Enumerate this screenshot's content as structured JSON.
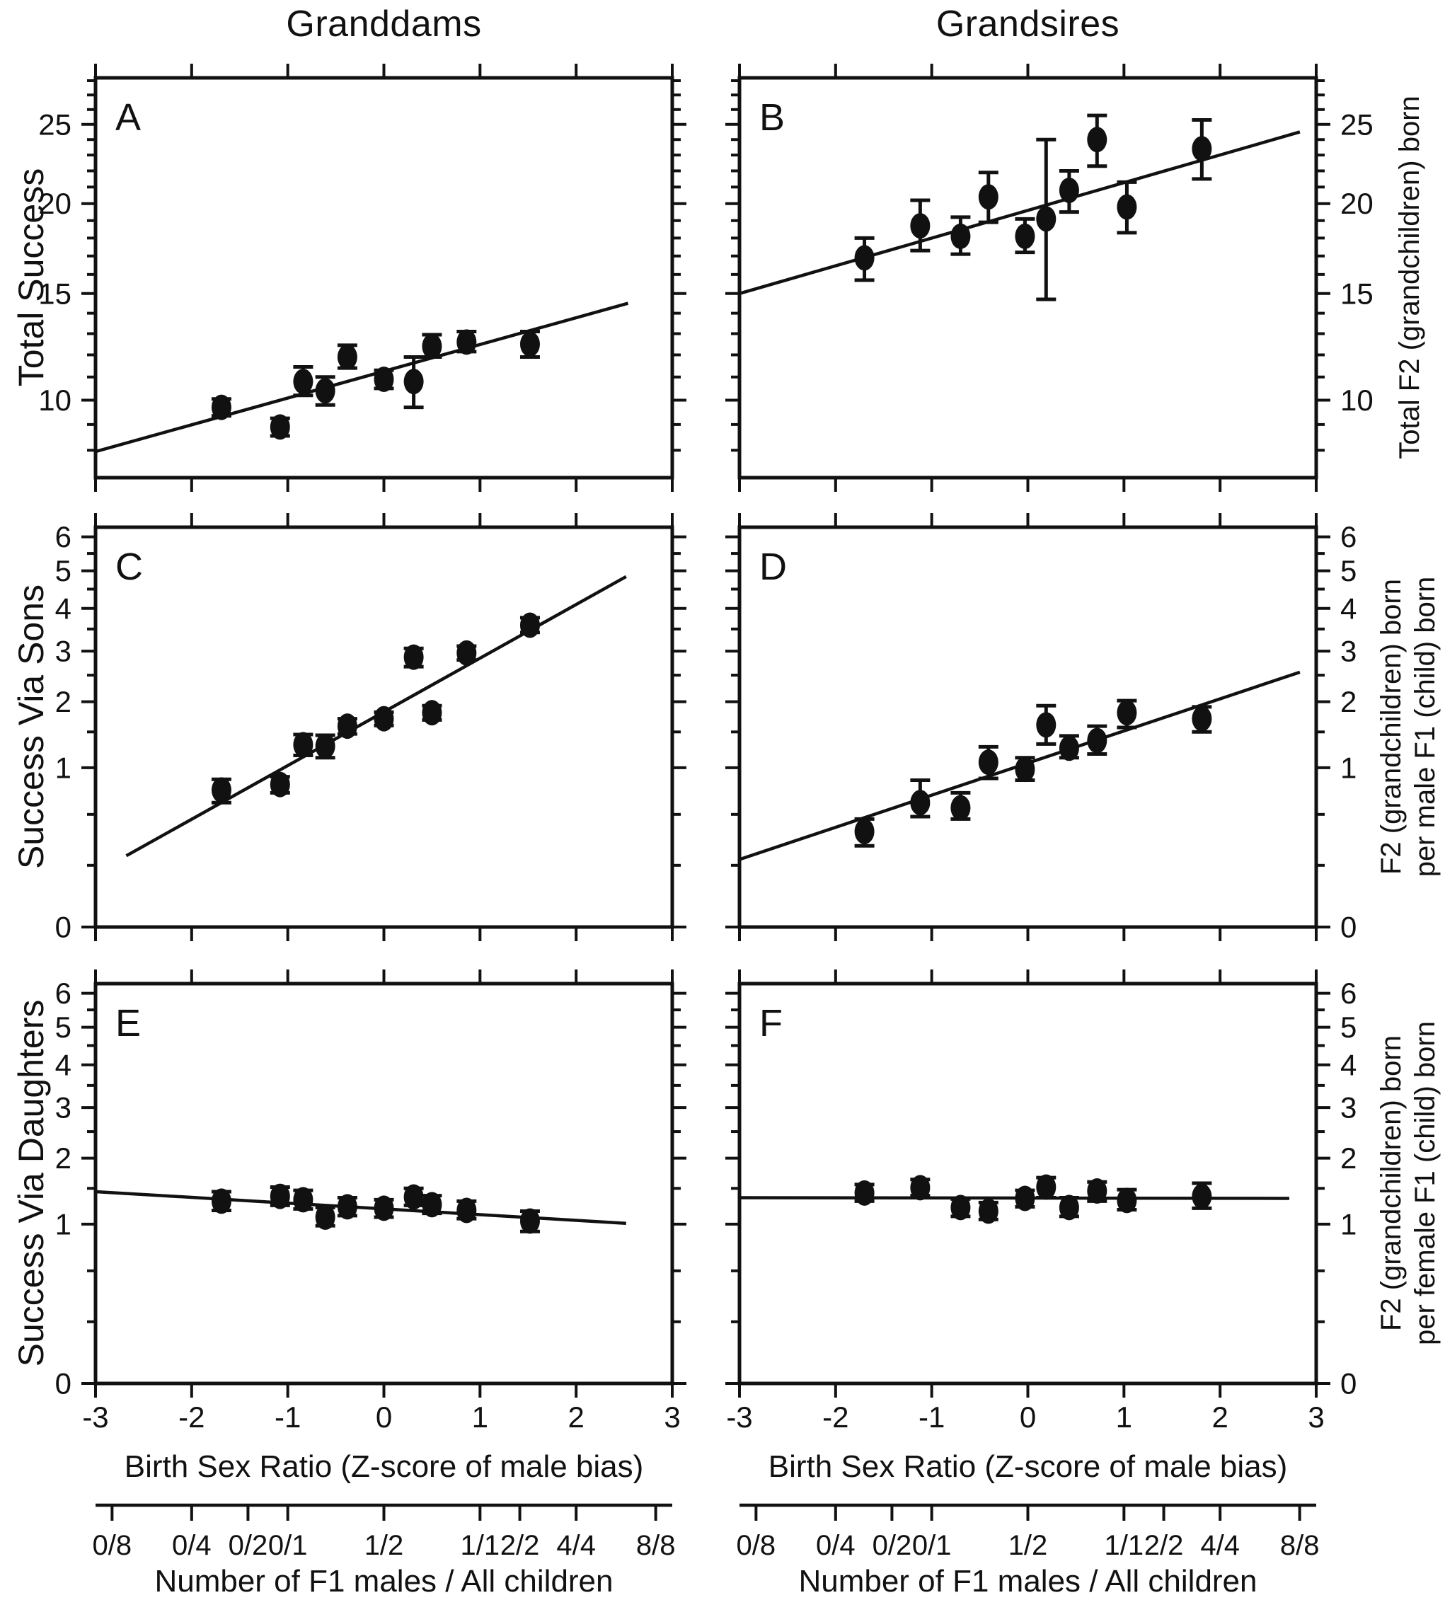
{
  "figure": {
    "background": "#ffffff",
    "ink_color": "#111111",
    "column_titles": [
      "Granddams",
      "Grandsires"
    ],
    "row_labels_left": [
      "Total Success",
      "Success Via Sons",
      "Success Via Daughters"
    ],
    "row_labels_right": [
      [
        "Total F2 (grandchildren) born"
      ],
      [
        "F2 (grandchildren) born",
        "per male F1 (child) born"
      ],
      [
        "F2 (grandchildren) born",
        "per female F1 (child) born"
      ]
    ],
    "x_axis_label": "Birth Sex Ratio (Z-score of male bias)",
    "secondary_axis_label": "Number of F1 males / All children",
    "x_tick_labels": [
      "-3",
      "-2",
      "-1",
      "0",
      "1",
      "2",
      "3"
    ],
    "x_tick_values": [
      -3,
      -2,
      -1,
      0,
      1,
      2,
      3
    ],
    "secondary_ticks": [
      {
        "label": "0/8",
        "z": -2.828
      },
      {
        "label": "0/4",
        "z": -2.0
      },
      {
        "label": "0/2",
        "z": -1.414
      },
      {
        "label": "0/1",
        "z": -1.0
      },
      {
        "label": "1/2",
        "z": 0.0
      },
      {
        "label": "1/1",
        "z": 1.0
      },
      {
        "label": "2/2",
        "z": 1.414
      },
      {
        "label": "4/4",
        "z": 2.0
      },
      {
        "label": "8/8",
        "z": 2.828
      }
    ]
  },
  "chart_data": [
    {
      "panel": "A",
      "type": "scatter",
      "row": 0,
      "col": 0,
      "title": "Granddams - Total Success",
      "xlabel": "Birth Sex Ratio (Z-score of male bias)",
      "ylabel": "Total Success",
      "xlim": [
        -3,
        3
      ],
      "ylim": [
        7,
        28.2
      ],
      "y_scale": "sqrt",
      "tick_label_side": "left",
      "y_major_ticks": [
        10,
        15,
        20,
        25
      ],
      "y_minor_ticks": [
        8,
        9,
        11,
        12,
        13,
        14,
        16,
        17,
        18,
        19,
        21,
        22,
        23,
        24,
        26,
        27,
        28
      ],
      "points": [
        {
          "x": -1.69,
          "y": 9.7,
          "eu": 0.35,
          "ed": 0.35
        },
        {
          "x": -1.08,
          "y": 8.9,
          "eu": 0.35,
          "ed": 0.35
        },
        {
          "x": -0.84,
          "y": 10.8,
          "eu": 0.65,
          "ed": 0.6
        },
        {
          "x": -0.61,
          "y": 10.4,
          "eu": 0.6,
          "ed": 0.6
        },
        {
          "x": -0.38,
          "y": 11.9,
          "eu": 0.55,
          "ed": 0.5
        },
        {
          "x": 0.0,
          "y": 10.9,
          "eu": 0.4,
          "ed": 0.4
        },
        {
          "x": 0.31,
          "y": 10.8,
          "eu": 1.1,
          "ed": 1.1
        },
        {
          "x": 0.5,
          "y": 12.4,
          "eu": 0.55,
          "ed": 0.5
        },
        {
          "x": 0.86,
          "y": 12.6,
          "eu": 0.5,
          "ed": 0.45
        },
        {
          "x": 1.52,
          "y": 12.5,
          "eu": 0.6,
          "ed": 0.6
        }
      ],
      "fit_line": {
        "x1": -3.0,
        "y1": 7.95,
        "x2": 2.54,
        "y2": 14.5
      }
    },
    {
      "panel": "B",
      "type": "scatter",
      "row": 0,
      "col": 1,
      "title": "Grandsires - Total F2 born",
      "xlabel": "Birth Sex Ratio (Z-score of male bias)",
      "ylabel": "Total F2 (grandchildren) born",
      "xlim": [
        -3,
        3
      ],
      "ylim": [
        7,
        28.2
      ],
      "y_scale": "sqrt",
      "tick_label_side": "right",
      "y_major_ticks": [
        10,
        15,
        20,
        25
      ],
      "y_minor_ticks": [
        8,
        9,
        11,
        12,
        13,
        14,
        16,
        17,
        18,
        19,
        21,
        22,
        23,
        24,
        26,
        27,
        28
      ],
      "points": [
        {
          "x": -1.7,
          "y": 16.9,
          "eu": 1.1,
          "ed": 1.2
        },
        {
          "x": -1.12,
          "y": 18.7,
          "eu": 1.5,
          "ed": 1.4
        },
        {
          "x": -0.7,
          "y": 18.1,
          "eu": 1.1,
          "ed": 1.0
        },
        {
          "x": -0.41,
          "y": 20.4,
          "eu": 1.5,
          "ed": 1.5
        },
        {
          "x": -0.03,
          "y": 18.1,
          "eu": 1.0,
          "ed": 0.9
        },
        {
          "x": 0.19,
          "y": 19.1,
          "eu": 4.9,
          "ed": 4.4
        },
        {
          "x": 0.43,
          "y": 20.8,
          "eu": 1.2,
          "ed": 1.3
        },
        {
          "x": 0.72,
          "y": 24.0,
          "eu": 1.6,
          "ed": 1.7
        },
        {
          "x": 1.03,
          "y": 19.8,
          "eu": 1.5,
          "ed": 1.5
        },
        {
          "x": 1.81,
          "y": 23.4,
          "eu": 1.9,
          "ed": 1.9
        }
      ],
      "fit_line": {
        "x1": -3.0,
        "y1": 15.0,
        "x2": 2.83,
        "y2": 24.5
      }
    },
    {
      "panel": "C",
      "type": "scatter",
      "row": 1,
      "col": 0,
      "title": "Granddams - Success Via Sons",
      "xlabel": "Birth Sex Ratio (Z-score of male bias)",
      "ylabel": "Success Via Sons",
      "xlim": [
        -3,
        3
      ],
      "ylim": [
        0,
        6.3
      ],
      "y_scale": "sqrt",
      "tick_label_side": "left",
      "y_major_ticks": [
        0,
        1,
        2,
        3,
        4,
        5,
        6
      ],
      "y_minor_ticks": [
        0.15,
        0.5,
        1.5,
        2.5,
        3.5,
        4.5,
        5.5
      ],
      "points": [
        {
          "x": -1.69,
          "y": 0.74,
          "eu": 0.12,
          "ed": 0.13
        },
        {
          "x": -1.08,
          "y": 0.8,
          "eu": 0.09,
          "ed": 0.09
        },
        {
          "x": -0.84,
          "y": 1.31,
          "eu": 0.15,
          "ed": 0.15
        },
        {
          "x": -0.61,
          "y": 1.29,
          "eu": 0.16,
          "ed": 0.16
        },
        {
          "x": -0.38,
          "y": 1.59,
          "eu": 0.12,
          "ed": 0.12
        },
        {
          "x": 0.0,
          "y": 1.71,
          "eu": 0.11,
          "ed": 0.11
        },
        {
          "x": 0.31,
          "y": 2.87,
          "eu": 0.19,
          "ed": 0.2
        },
        {
          "x": 0.5,
          "y": 1.81,
          "eu": 0.12,
          "ed": 0.12
        },
        {
          "x": 0.86,
          "y": 2.96,
          "eu": 0.15,
          "ed": 0.15
        },
        {
          "x": 1.52,
          "y": 3.59,
          "eu": 0.18,
          "ed": 0.17
        }
      ],
      "fit_line": {
        "x1": -2.68,
        "y1": 0.2,
        "x2": 2.52,
        "y2": 4.84
      }
    },
    {
      "panel": "D",
      "type": "scatter",
      "row": 1,
      "col": 1,
      "title": "Grandsires - F2 born per male F1",
      "xlabel": "Birth Sex Ratio (Z-score of male bias)",
      "ylabel": "F2 (grandchildren) born per male F1 (child) born",
      "xlim": [
        -3,
        3
      ],
      "ylim": [
        0,
        6.3
      ],
      "y_scale": "sqrt",
      "tick_label_side": "right",
      "y_major_ticks": [
        0,
        1,
        2,
        3,
        4,
        5,
        6
      ],
      "y_minor_ticks": [
        0.15,
        0.5,
        1.5,
        2.5,
        3.5,
        4.5,
        5.5
      ],
      "points": [
        {
          "x": -1.7,
          "y": 0.36,
          "eu": 0.1,
          "ed": 0.1
        },
        {
          "x": -1.12,
          "y": 0.61,
          "eu": 0.24,
          "ed": 0.13
        },
        {
          "x": -0.7,
          "y": 0.56,
          "eu": 0.15,
          "ed": 0.1
        },
        {
          "x": -0.41,
          "y": 1.07,
          "eu": 0.21,
          "ed": 0.2
        },
        {
          "x": -0.03,
          "y": 0.98,
          "eu": 0.15,
          "ed": 0.13
        },
        {
          "x": 0.19,
          "y": 1.61,
          "eu": 0.32,
          "ed": 0.29
        },
        {
          "x": 0.43,
          "y": 1.26,
          "eu": 0.18,
          "ed": 0.13
        },
        {
          "x": 0.72,
          "y": 1.37,
          "eu": 0.22,
          "ed": 0.19
        },
        {
          "x": 1.03,
          "y": 1.81,
          "eu": 0.21,
          "ed": 0.24
        },
        {
          "x": 1.81,
          "y": 1.71,
          "eu": 0.2,
          "ed": 0.21
        }
      ],
      "fit_line": {
        "x1": -3.0,
        "y1": 0.18,
        "x2": 2.83,
        "y2": 2.56
      }
    },
    {
      "panel": "E",
      "type": "scatter",
      "row": 2,
      "col": 0,
      "title": "Granddams - Success Via Daughters",
      "xlabel": "Birth Sex Ratio (Z-score of male bias)",
      "ylabel": "Success Via Daughters",
      "xlim": [
        -3,
        3
      ],
      "ylim": [
        0,
        6.3
      ],
      "y_scale": "sqrt",
      "tick_label_side": "left",
      "y_major_ticks": [
        0,
        1,
        2,
        3,
        4,
        5,
        6
      ],
      "y_minor_ticks": [
        0.15,
        0.5,
        1.5,
        2.5,
        3.5,
        4.5,
        5.5
      ],
      "points": [
        {
          "x": -1.69,
          "y": 1.31,
          "eu": 0.14,
          "ed": 0.13
        },
        {
          "x": -1.08,
          "y": 1.38,
          "eu": 0.14,
          "ed": 0.13
        },
        {
          "x": -0.84,
          "y": 1.33,
          "eu": 0.14,
          "ed": 0.13
        },
        {
          "x": -0.61,
          "y": 1.09,
          "eu": 0.13,
          "ed": 0.11
        },
        {
          "x": -0.38,
          "y": 1.23,
          "eu": 0.13,
          "ed": 0.12
        },
        {
          "x": 0.0,
          "y": 1.21,
          "eu": 0.12,
          "ed": 0.12
        },
        {
          "x": 0.31,
          "y": 1.37,
          "eu": 0.13,
          "ed": 0.12
        },
        {
          "x": 0.5,
          "y": 1.26,
          "eu": 0.13,
          "ed": 0.12
        },
        {
          "x": 0.86,
          "y": 1.18,
          "eu": 0.13,
          "ed": 0.11
        },
        {
          "x": 1.52,
          "y": 1.04,
          "eu": 0.13,
          "ed": 0.13
        }
      ],
      "fit_line": {
        "x1": -3.0,
        "y1": 1.45,
        "x2": 2.52,
        "y2": 1.01
      }
    },
    {
      "panel": "F",
      "type": "scatter",
      "row": 2,
      "col": 1,
      "title": "Grandsires - F2 born per female F1",
      "xlabel": "Birth Sex Ratio (Z-score of male bias)",
      "ylabel": "F2 (grandchildren) born per female F1 (child) born",
      "xlim": [
        -3,
        3
      ],
      "ylim": [
        0,
        6.3
      ],
      "y_scale": "sqrt",
      "tick_label_side": "right",
      "y_major_ticks": [
        0,
        1,
        2,
        3,
        4,
        5,
        6
      ],
      "y_minor_ticks": [
        0.15,
        0.5,
        1.5,
        2.5,
        3.5,
        4.5,
        5.5
      ],
      "points": [
        {
          "x": -1.7,
          "y": 1.43,
          "eu": 0.13,
          "ed": 0.12
        },
        {
          "x": -1.12,
          "y": 1.51,
          "eu": 0.13,
          "ed": 0.12
        },
        {
          "x": -0.7,
          "y": 1.22,
          "eu": 0.12,
          "ed": 0.12
        },
        {
          "x": -0.41,
          "y": 1.17,
          "eu": 0.12,
          "ed": 0.11
        },
        {
          "x": -0.03,
          "y": 1.35,
          "eu": 0.12,
          "ed": 0.12
        },
        {
          "x": 0.19,
          "y": 1.52,
          "eu": 0.15,
          "ed": 0.16
        },
        {
          "x": 0.43,
          "y": 1.22,
          "eu": 0.14,
          "ed": 0.12
        },
        {
          "x": 0.72,
          "y": 1.46,
          "eu": 0.14,
          "ed": 0.15
        },
        {
          "x": 1.03,
          "y": 1.32,
          "eu": 0.16,
          "ed": 0.13
        },
        {
          "x": 1.81,
          "y": 1.38,
          "eu": 0.2,
          "ed": 0.17
        }
      ],
      "fit_line": {
        "x1": -3.0,
        "y1": 1.36,
        "x2": 2.72,
        "y2": 1.35
      }
    }
  ]
}
